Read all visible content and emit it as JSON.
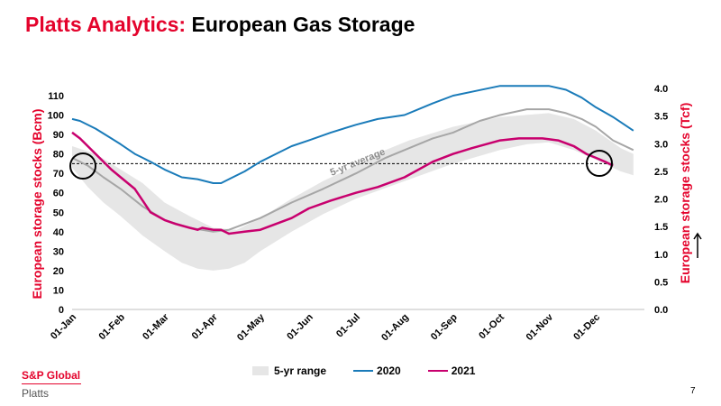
{
  "title": {
    "accent": "Platts Analytics:",
    "main": "European Gas Storage"
  },
  "brand": {
    "line1": "S&P Global",
    "line2": "Platts"
  },
  "page_number": "7",
  "colors": {
    "accent": "#e4032c",
    "range": "#e6e6e6",
    "avg": "#a6a6a6",
    "s2020": "#1a7bb9",
    "s2021": "#c8006e"
  },
  "legend": {
    "range": "5-yr range",
    "s2020": "2020",
    "s2021": "2021"
  },
  "chart_data": {
    "type": "line",
    "ylabel": "European storage stocks (Bcm)",
    "y2label": "European storage stocks (Tcf)",
    "ylim": [
      0,
      110
    ],
    "y2lim": [
      0.0,
      4.0
    ],
    "yticks": [
      "0",
      "10",
      "20",
      "30",
      "40",
      "50",
      "60",
      "70",
      "80",
      "90",
      "100",
      "110"
    ],
    "y2ticks": [
      "0.0",
      "0.5",
      "1.0",
      "1.5",
      "2.0",
      "2.5",
      "3.0",
      "3.5",
      "4.0"
    ],
    "xticks": [
      "01-Jan",
      "01-Feb",
      "01-Mar",
      "01-Apr",
      "01-May",
      "01-Jun",
      "01-Jul",
      "01-Aug",
      "01-Sep",
      "01-Oct",
      "01-Nov",
      "01-Dec"
    ],
    "xtick_days": [
      0,
      31,
      59,
      90,
      120,
      151,
      181,
      212,
      243,
      273,
      304,
      334
    ],
    "xlim": [
      0,
      365
    ],
    "reference_line": {
      "y": 75
    },
    "annotation": "5-yr average",
    "range_upper": [
      [
        0,
        84
      ],
      [
        15,
        80
      ],
      [
        31,
        72
      ],
      [
        45,
        65
      ],
      [
        59,
        55
      ],
      [
        75,
        48
      ],
      [
        90,
        42
      ],
      [
        105,
        41
      ],
      [
        120,
        47
      ],
      [
        140,
        57
      ],
      [
        160,
        66
      ],
      [
        181,
        74
      ],
      [
        200,
        82
      ],
      [
        215,
        87
      ],
      [
        243,
        94
      ],
      [
        273,
        99
      ],
      [
        304,
        101
      ],
      [
        320,
        98
      ],
      [
        334,
        92
      ],
      [
        350,
        83
      ],
      [
        358,
        80
      ]
    ],
    "range_lower": [
      [
        0,
        73
      ],
      [
        10,
        63
      ],
      [
        20,
        55
      ],
      [
        31,
        48
      ],
      [
        45,
        38
      ],
      [
        59,
        30
      ],
      [
        70,
        24
      ],
      [
        80,
        21
      ],
      [
        90,
        20
      ],
      [
        100,
        21
      ],
      [
        110,
        24
      ],
      [
        120,
        30
      ],
      [
        140,
        40
      ],
      [
        160,
        49
      ],
      [
        181,
        57
      ],
      [
        212,
        66
      ],
      [
        243,
        75
      ],
      [
        273,
        82
      ],
      [
        290,
        85
      ],
      [
        304,
        86
      ],
      [
        320,
        82
      ],
      [
        334,
        77
      ],
      [
        350,
        71
      ],
      [
        358,
        69
      ]
    ],
    "series": [
      {
        "name": "5-yr average",
        "key": "avg",
        "points": [
          [
            0,
            78
          ],
          [
            10,
            74
          ],
          [
            20,
            68
          ],
          [
            31,
            62
          ],
          [
            45,
            53
          ],
          [
            59,
            46
          ],
          [
            75,
            42
          ],
          [
            90,
            40
          ],
          [
            100,
            41
          ],
          [
            120,
            47
          ],
          [
            140,
            55
          ],
          [
            160,
            62
          ],
          [
            181,
            70
          ],
          [
            200,
            78
          ],
          [
            212,
            82
          ],
          [
            230,
            88
          ],
          [
            243,
            91
          ],
          [
            260,
            97
          ],
          [
            273,
            100
          ],
          [
            290,
            103
          ],
          [
            304,
            103
          ],
          [
            315,
            101
          ],
          [
            325,
            98
          ],
          [
            334,
            94
          ],
          [
            345,
            87
          ],
          [
            358,
            82
          ]
        ]
      },
      {
        "name": "2020",
        "key": "s2020",
        "points": [
          [
            0,
            98
          ],
          [
            5,
            97
          ],
          [
            15,
            93
          ],
          [
            25,
            88
          ],
          [
            31,
            85
          ],
          [
            40,
            80
          ],
          [
            45,
            78
          ],
          [
            50,
            76
          ],
          [
            59,
            72
          ],
          [
            70,
            68
          ],
          [
            80,
            67
          ],
          [
            90,
            65
          ],
          [
            95,
            65
          ],
          [
            100,
            67
          ],
          [
            110,
            71
          ],
          [
            120,
            76
          ],
          [
            130,
            80
          ],
          [
            140,
            84
          ],
          [
            151,
            87
          ],
          [
            165,
            91
          ],
          [
            181,
            95
          ],
          [
            195,
            98
          ],
          [
            212,
            100
          ],
          [
            230,
            106
          ],
          [
            243,
            110
          ],
          [
            255,
            112
          ],
          [
            273,
            115
          ],
          [
            290,
            115
          ],
          [
            304,
            115
          ],
          [
            315,
            113
          ],
          [
            325,
            109
          ],
          [
            334,
            104
          ],
          [
            345,
            99
          ],
          [
            358,
            92
          ]
        ]
      },
      {
        "name": "2021",
        "key": "s2021",
        "points": [
          [
            0,
            91
          ],
          [
            5,
            88
          ],
          [
            10,
            84
          ],
          [
            15,
            80
          ],
          [
            20,
            76
          ],
          [
            25,
            72
          ],
          [
            31,
            68
          ],
          [
            40,
            62
          ],
          [
            45,
            56
          ],
          [
            50,
            50
          ],
          [
            59,
            46
          ],
          [
            66,
            44
          ],
          [
            75,
            42
          ],
          [
            80,
            41
          ],
          [
            83,
            42
          ],
          [
            90,
            41
          ],
          [
            95,
            41
          ],
          [
            100,
            39
          ],
          [
            110,
            40
          ],
          [
            120,
            41
          ],
          [
            130,
            44
          ],
          [
            140,
            47
          ],
          [
            151,
            52
          ],
          [
            165,
            56
          ],
          [
            181,
            60
          ],
          [
            195,
            63
          ],
          [
            212,
            68
          ],
          [
            230,
            76
          ],
          [
            243,
            80
          ],
          [
            255,
            83
          ],
          [
            273,
            87
          ],
          [
            285,
            88
          ],
          [
            300,
            88
          ],
          [
            310,
            87
          ],
          [
            320,
            84
          ],
          [
            328,
            80
          ],
          [
            334,
            78
          ],
          [
            340,
            76
          ],
          [
            345,
            74
          ]
        ]
      }
    ]
  }
}
